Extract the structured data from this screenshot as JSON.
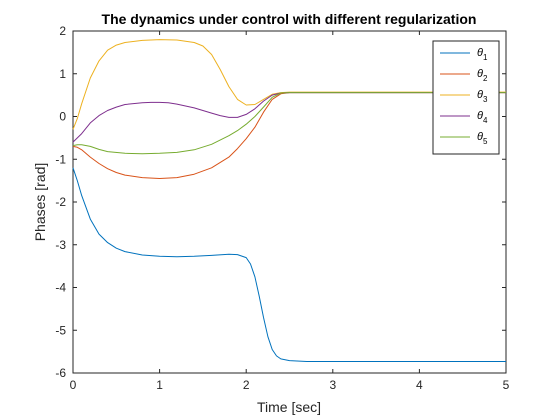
{
  "chart_data": {
    "type": "line",
    "title": "The dynamics under control with different regularization",
    "xlabel": "Time [sec]",
    "ylabel": "Phases [rad]",
    "xlim": [
      0,
      5
    ],
    "ylim": [
      -6,
      2
    ],
    "xticks": [
      0,
      1,
      2,
      3,
      4,
      5
    ],
    "yticks": [
      -6,
      -5,
      -4,
      -3,
      -2,
      -1,
      0,
      1,
      2
    ],
    "xtick_labels": [
      "0",
      "1",
      "2",
      "3",
      "4",
      "5"
    ],
    "ytick_labels": [
      "-6",
      "-5",
      "-4",
      "-3",
      "-2",
      "-1",
      "0",
      "1",
      "2"
    ],
    "grid": false,
    "legend_position": "top-right",
    "series": [
      {
        "name": "θ1",
        "base": "θ",
        "sub": "1",
        "color": "#0072BD",
        "points": [
          [
            0,
            -1.2
          ],
          [
            0.05,
            -1.5
          ],
          [
            0.1,
            -1.85
          ],
          [
            0.2,
            -2.4
          ],
          [
            0.3,
            -2.75
          ],
          [
            0.4,
            -2.95
          ],
          [
            0.5,
            -3.08
          ],
          [
            0.6,
            -3.16
          ],
          [
            0.8,
            -3.24
          ],
          [
            1.0,
            -3.27
          ],
          [
            1.2,
            -3.28
          ],
          [
            1.4,
            -3.27
          ],
          [
            1.6,
            -3.25
          ],
          [
            1.8,
            -3.22
          ],
          [
            1.9,
            -3.23
          ],
          [
            2.0,
            -3.3
          ],
          [
            2.05,
            -3.45
          ],
          [
            2.1,
            -3.75
          ],
          [
            2.15,
            -4.2
          ],
          [
            2.2,
            -4.7
          ],
          [
            2.25,
            -5.15
          ],
          [
            2.3,
            -5.45
          ],
          [
            2.35,
            -5.6
          ],
          [
            2.4,
            -5.67
          ],
          [
            2.5,
            -5.71
          ],
          [
            2.7,
            -5.73
          ],
          [
            3.0,
            -5.73
          ],
          [
            4.0,
            -5.73
          ],
          [
            5.0,
            -5.73
          ]
        ]
      },
      {
        "name": "θ2",
        "base": "θ",
        "sub": "2",
        "color": "#D95319",
        "points": [
          [
            0,
            -0.7
          ],
          [
            0.05,
            -0.72
          ],
          [
            0.1,
            -0.78
          ],
          [
            0.2,
            -0.95
          ],
          [
            0.3,
            -1.1
          ],
          [
            0.4,
            -1.22
          ],
          [
            0.5,
            -1.31
          ],
          [
            0.6,
            -1.37
          ],
          [
            0.8,
            -1.43
          ],
          [
            1.0,
            -1.45
          ],
          [
            1.2,
            -1.43
          ],
          [
            1.4,
            -1.35
          ],
          [
            1.6,
            -1.2
          ],
          [
            1.8,
            -0.95
          ],
          [
            1.9,
            -0.75
          ],
          [
            2.0,
            -0.52
          ],
          [
            2.1,
            -0.25
          ],
          [
            2.2,
            0.1
          ],
          [
            2.3,
            0.4
          ],
          [
            2.4,
            0.53
          ],
          [
            2.5,
            0.56
          ],
          [
            3.0,
            0.56
          ],
          [
            5.0,
            0.56
          ]
        ]
      },
      {
        "name": "θ3",
        "base": "θ",
        "sub": "3",
        "color": "#EDB120",
        "points": [
          [
            0,
            -0.3
          ],
          [
            0.05,
            -0.05
          ],
          [
            0.1,
            0.3
          ],
          [
            0.2,
            0.9
          ],
          [
            0.3,
            1.3
          ],
          [
            0.4,
            1.55
          ],
          [
            0.5,
            1.67
          ],
          [
            0.6,
            1.73
          ],
          [
            0.8,
            1.78
          ],
          [
            1.0,
            1.8
          ],
          [
            1.2,
            1.79
          ],
          [
            1.4,
            1.73
          ],
          [
            1.5,
            1.65
          ],
          [
            1.6,
            1.45
          ],
          [
            1.7,
            1.1
          ],
          [
            1.8,
            0.7
          ],
          [
            1.9,
            0.4
          ],
          [
            2.0,
            0.27
          ],
          [
            2.1,
            0.28
          ],
          [
            2.2,
            0.4
          ],
          [
            2.3,
            0.52
          ],
          [
            2.4,
            0.56
          ],
          [
            2.5,
            0.57
          ],
          [
            3.0,
            0.57
          ],
          [
            5.0,
            0.57
          ]
        ]
      },
      {
        "name": "θ4",
        "base": "θ",
        "sub": "4",
        "color": "#7E2F8E",
        "points": [
          [
            0,
            -0.6
          ],
          [
            0.1,
            -0.4
          ],
          [
            0.2,
            -0.15
          ],
          [
            0.3,
            0.02
          ],
          [
            0.4,
            0.14
          ],
          [
            0.5,
            0.22
          ],
          [
            0.6,
            0.28
          ],
          [
            0.8,
            0.32
          ],
          [
            0.9,
            0.33
          ],
          [
            1.0,
            0.33
          ],
          [
            1.1,
            0.32
          ],
          [
            1.2,
            0.29
          ],
          [
            1.4,
            0.2
          ],
          [
            1.6,
            0.08
          ],
          [
            1.7,
            0.02
          ],
          [
            1.8,
            -0.02
          ],
          [
            1.9,
            -0.02
          ],
          [
            2.0,
            0.05
          ],
          [
            2.1,
            0.18
          ],
          [
            2.2,
            0.36
          ],
          [
            2.3,
            0.5
          ],
          [
            2.4,
            0.55
          ],
          [
            2.5,
            0.56
          ],
          [
            3.0,
            0.56
          ],
          [
            5.0,
            0.56
          ]
        ]
      },
      {
        "name": "θ5",
        "base": "θ",
        "sub": "5",
        "color": "#77AC30",
        "points": [
          [
            0,
            -0.68
          ],
          [
            0.05,
            -0.66
          ],
          [
            0.1,
            -0.66
          ],
          [
            0.2,
            -0.7
          ],
          [
            0.3,
            -0.77
          ],
          [
            0.4,
            -0.82
          ],
          [
            0.6,
            -0.86
          ],
          [
            0.8,
            -0.87
          ],
          [
            1.0,
            -0.86
          ],
          [
            1.2,
            -0.84
          ],
          [
            1.4,
            -0.78
          ],
          [
            1.6,
            -0.65
          ],
          [
            1.8,
            -0.45
          ],
          [
            1.9,
            -0.33
          ],
          [
            2.0,
            -0.18
          ],
          [
            2.1,
            0.0
          ],
          [
            2.2,
            0.22
          ],
          [
            2.3,
            0.45
          ],
          [
            2.4,
            0.55
          ],
          [
            2.5,
            0.56
          ],
          [
            3.0,
            0.56
          ],
          [
            5.0,
            0.56
          ]
        ]
      }
    ]
  }
}
